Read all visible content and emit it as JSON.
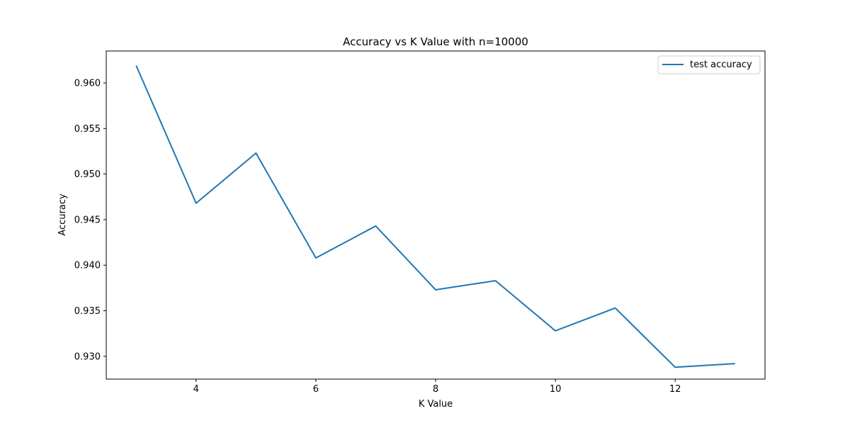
{
  "chart_data": {
    "type": "line",
    "title": "Accuracy vs K Value with n=10000",
    "xlabel": "K Value",
    "ylabel": "Accuracy",
    "xlim": [
      2.5,
      13.5
    ],
    "ylim": [
      0.9275,
      0.9635
    ],
    "xticks": [
      4,
      6,
      8,
      10,
      12
    ],
    "yticks": [
      0.93,
      0.935,
      0.94,
      0.945,
      0.95,
      0.955,
      0.96
    ],
    "xtick_labels": [
      "4",
      "6",
      "8",
      "10",
      "12"
    ],
    "ytick_labels": [
      "0.930",
      "0.935",
      "0.940",
      "0.945",
      "0.950",
      "0.955",
      "0.960"
    ],
    "grid": false,
    "legend": {
      "position": "upper right"
    },
    "series": [
      {
        "name": "test accuracy",
        "color": "#1f77b4",
        "x": [
          3,
          4,
          5,
          6,
          7,
          8,
          9,
          10,
          11,
          12,
          13
        ],
        "y": [
          0.9619,
          0.9468,
          0.9523,
          0.9408,
          0.9443,
          0.9373,
          0.9383,
          0.9328,
          0.9353,
          0.9288,
          0.9292
        ]
      }
    ]
  }
}
